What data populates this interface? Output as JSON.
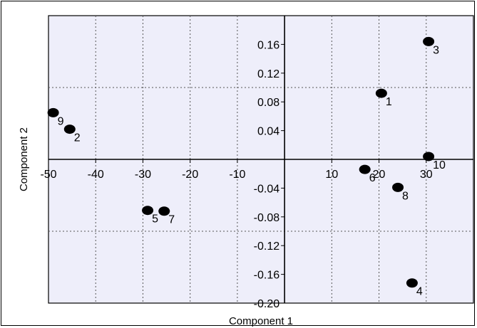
{
  "chart_data": {
    "type": "scatter",
    "title": "",
    "xlabel": "Component 1",
    "ylabel": "Component 2",
    "xlim": [
      -50,
      40
    ],
    "ylim": [
      -0.2,
      0.2
    ],
    "grid": true,
    "x_ticks": [
      {
        "value": -50,
        "label": "-50"
      },
      {
        "value": -40,
        "label": "-40"
      },
      {
        "value": -30,
        "label": "-30"
      },
      {
        "value": -20,
        "label": "-20"
      },
      {
        "value": -10,
        "label": "-10"
      },
      {
        "value": 10,
        "label": "10"
      },
      {
        "value": 20,
        "label": "20"
      },
      {
        "value": 30,
        "label": "30"
      }
    ],
    "y_ticks": [
      {
        "value": 0.16,
        "label": "0.16"
      },
      {
        "value": 0.12,
        "label": "0.12"
      },
      {
        "value": 0.08,
        "label": "0.08"
      },
      {
        "value": 0.04,
        "label": "0.04"
      },
      {
        "value": -0.04,
        "label": "-0.04"
      },
      {
        "value": -0.08,
        "label": "-0.08"
      },
      {
        "value": -0.12,
        "label": "-0.12"
      },
      {
        "value": -0.16,
        "label": "-0.16"
      },
      {
        "value": -0.2,
        "label": "-0.20"
      }
    ],
    "points": [
      {
        "label": "1",
        "x": 20.5,
        "y": 0.092
      },
      {
        "label": "2",
        "x": -45.5,
        "y": 0.042
      },
      {
        "label": "3",
        "x": 30.5,
        "y": 0.164
      },
      {
        "label": "4",
        "x": 27,
        "y": -0.172
      },
      {
        "label": "5",
        "x": -29,
        "y": -0.071
      },
      {
        "label": "6",
        "x": 17,
        "y": -0.014
      },
      {
        "label": "7",
        "x": -25.5,
        "y": -0.072
      },
      {
        "label": "8",
        "x": 24,
        "y": -0.039
      },
      {
        "label": "9",
        "x": -49,
        "y": 0.065
      },
      {
        "label": "10",
        "x": 30.5,
        "y": 0.004
      }
    ]
  }
}
